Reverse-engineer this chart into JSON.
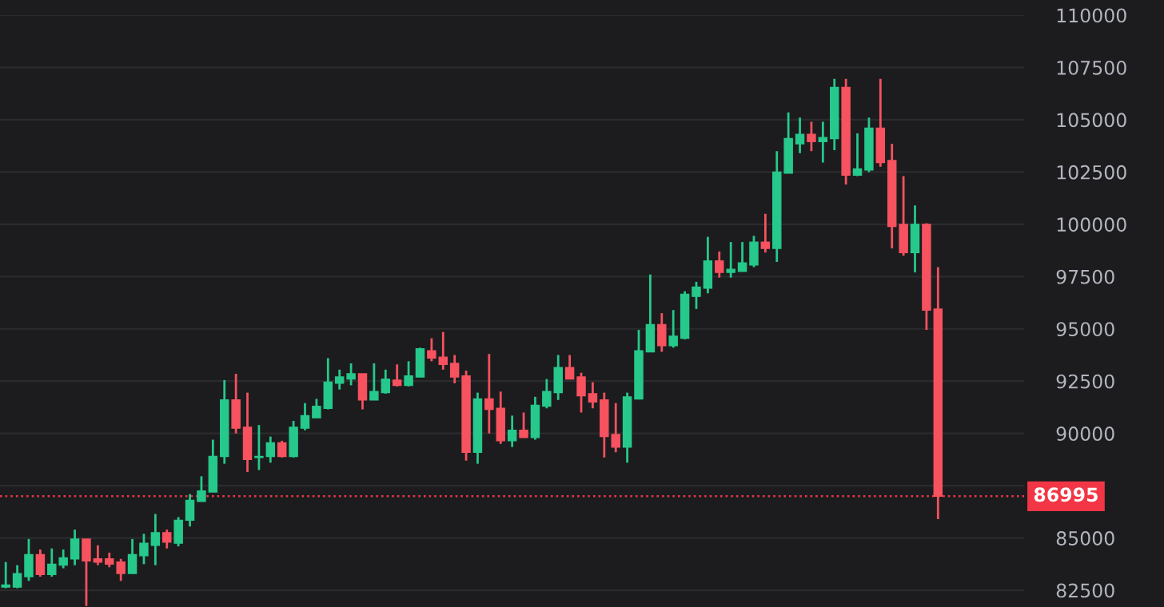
{
  "chart_data": {
    "type": "candlestick",
    "categories": [
      null,
      null,
      null,
      null,
      null,
      null,
      null,
      null,
      null,
      null,
      null,
      null,
      null,
      null,
      null,
      null,
      null,
      null,
      null,
      null,
      null,
      null,
      null,
      null,
      null,
      null,
      null,
      null,
      null,
      null,
      null,
      null,
      null,
      null,
      null,
      null,
      null,
      null,
      null,
      null,
      null,
      null,
      null,
      null,
      null,
      null,
      null,
      null,
      null,
      null,
      null,
      null,
      null,
      null,
      null,
      null,
      null,
      null,
      null,
      null,
      null,
      null,
      null,
      null,
      null,
      null,
      null,
      null,
      null,
      null,
      null,
      null,
      null,
      null,
      null,
      null,
      null,
      null,
      null,
      null,
      null,
      null,
      null,
      null,
      null,
      null,
      null,
      null,
      null
    ],
    "ohlc": [
      [
        82650,
        83850,
        82600,
        82750
      ],
      [
        82650,
        83700,
        82600,
        83300
      ],
      [
        83150,
        84950,
        82950,
        84200
      ],
      [
        84200,
        84450,
        83150,
        83250
      ],
      [
        83250,
        84500,
        83150,
        83750
      ],
      [
        83700,
        84450,
        83550,
        84050
      ],
      [
        84000,
        85400,
        83700,
        84950
      ],
      [
        84950,
        84950,
        81750,
        83900
      ],
      [
        84000,
        84650,
        83700,
        83850
      ],
      [
        84000,
        84300,
        83600,
        83750
      ],
      [
        83850,
        84000,
        82950,
        83300
      ],
      [
        83300,
        84950,
        83300,
        84200
      ],
      [
        84150,
        85200,
        83750,
        84750
      ],
      [
        84650,
        86150,
        83700,
        85250
      ],
      [
        85250,
        85400,
        84500,
        84800
      ],
      [
        84750,
        86000,
        84600,
        85850
      ],
      [
        85850,
        87100,
        85550,
        86800
      ],
      [
        86750,
        87950,
        86750,
        87250
      ],
      [
        87200,
        89700,
        87200,
        88900
      ],
      [
        88900,
        92550,
        88550,
        91600
      ],
      [
        91600,
        92850,
        90000,
        90250
      ],
      [
        90300,
        91950,
        88150,
        88750
      ],
      [
        88850,
        90400,
        88250,
        88900
      ],
      [
        88900,
        89850,
        88600,
        89550
      ],
      [
        89550,
        89650,
        88850,
        88900
      ],
      [
        88900,
        90600,
        88850,
        90300
      ],
      [
        90250,
        91450,
        90150,
        90850
      ],
      [
        90750,
        91650,
        90750,
        91300
      ],
      [
        91200,
        93600,
        91150,
        92450
      ],
      [
        92400,
        93050,
        92100,
        92700
      ],
      [
        92600,
        93350,
        92300,
        92850
      ],
      [
        92850,
        92850,
        91150,
        91600
      ],
      [
        91600,
        93350,
        91600,
        92000
      ],
      [
        91950,
        93050,
        91900,
        92600
      ],
      [
        92550,
        93300,
        92250,
        92300
      ],
      [
        92300,
        93450,
        92250,
        92750
      ],
      [
        92700,
        94100,
        92700,
        94050
      ],
      [
        93950,
        94550,
        93450,
        93600
      ],
      [
        93650,
        94850,
        93050,
        93300
      ],
      [
        93350,
        93750,
        92400,
        92700
      ],
      [
        92750,
        93000,
        88700,
        89100
      ],
      [
        89100,
        91950,
        88550,
        91650
      ],
      [
        91650,
        93800,
        90000,
        91150
      ],
      [
        91200,
        92000,
        89500,
        89650
      ],
      [
        89650,
        90850,
        89350,
        90150
      ],
      [
        90150,
        91000,
        89800,
        89800
      ],
      [
        89800,
        91750,
        89700,
        91350
      ],
      [
        91300,
        92600,
        91200,
        92000
      ],
      [
        91950,
        93750,
        91600,
        93150
      ],
      [
        93150,
        93750,
        92600,
        92600
      ],
      [
        92700,
        92900,
        91000,
        91800
      ],
      [
        91900,
        92450,
        91200,
        91500
      ],
      [
        91600,
        91950,
        88850,
        89850
      ],
      [
        89950,
        91450,
        89100,
        89350
      ],
      [
        89350,
        91950,
        88600,
        91750
      ],
      [
        91650,
        94950,
        91650,
        93950
      ],
      [
        93900,
        97600,
        93900,
        95200
      ],
      [
        95200,
        95750,
        93900,
        94200
      ],
      [
        94200,
        95900,
        94100,
        94650
      ],
      [
        94550,
        96800,
        94500,
        96650
      ],
      [
        96550,
        97250,
        95950,
        97000
      ],
      [
        96950,
        99400,
        96700,
        98250
      ],
      [
        98250,
        98700,
        97450,
        97700
      ],
      [
        97700,
        99150,
        97450,
        97850
      ],
      [
        97750,
        99150,
        97750,
        98150
      ],
      [
        98050,
        99450,
        97950,
        99150
      ],
      [
        99150,
        100500,
        98650,
        98850
      ],
      [
        98850,
        103500,
        98200,
        102500
      ],
      [
        102450,
        105350,
        102450,
        104100
      ],
      [
        103850,
        105100,
        103400,
        104300
      ],
      [
        104300,
        104900,
        103500,
        103950
      ],
      [
        103950,
        104900,
        102950,
        104150
      ],
      [
        104100,
        106950,
        103550,
        106550
      ],
      [
        106550,
        106950,
        101900,
        102350
      ],
      [
        102350,
        104350,
        102300,
        102650
      ],
      [
        102600,
        105100,
        102500,
        104600
      ],
      [
        104600,
        106950,
        102750,
        102950
      ],
      [
        103050,
        103850,
        98850,
        99900
      ],
      [
        100000,
        102300,
        98500,
        98650
      ],
      [
        98650,
        100900,
        97700,
        100000
      ],
      [
        100000,
        100050,
        94950,
        95900
      ],
      [
        95950,
        97950,
        85900,
        86995
      ],
      null,
      null,
      null,
      null,
      null,
      null,
      null
    ],
    "colors": [
      "#26c98b",
      "#26c98b",
      "#26c98b",
      "#f7525f",
      "#26c98b",
      "#26c98b",
      "#26c98b",
      "#f7525f",
      "#f7525f",
      "#f7525f",
      "#f7525f",
      "#26c98b",
      "#26c98b",
      "#26c98b",
      "#f7525f",
      "#26c98b",
      "#26c98b",
      "#26c98b",
      "#26c98b",
      "#26c98b",
      "#f7525f",
      "#f7525f",
      "#26c98b",
      "#26c98b",
      "#f7525f",
      "#26c98b",
      "#26c98b",
      "#26c98b",
      "#26c98b",
      "#26c98b",
      "#26c98b",
      "#f7525f",
      "#26c98b",
      "#26c98b",
      "#f7525f",
      "#26c98b",
      "#26c98b",
      "#f7525f",
      "#f7525f",
      "#f7525f",
      "#f7525f",
      "#26c98b",
      "#f7525f",
      "#f7525f",
      "#26c98b",
      "#f7525f",
      "#26c98b",
      "#26c98b",
      "#26c98b",
      "#f7525f",
      "#f7525f",
      "#f7525f",
      "#f7525f",
      "#f7525f",
      "#26c98b",
      "#26c98b",
      "#26c98b",
      "#f7525f",
      "#26c98b",
      "#26c98b",
      "#26c98b",
      "#26c98b",
      "#f7525f",
      "#26c98b",
      "#26c98b",
      "#26c98b",
      "#f7525f",
      "#26c98b",
      "#26c98b",
      "#26c98b",
      "#f7525f",
      "#26c98b",
      "#26c98b",
      "#f7525f",
      "#26c98b",
      "#26c98b",
      "#f7525f",
      "#f7525f",
      "#f7525f",
      "#26c98b",
      "#f7525f",
      "#f7525f",
      null,
      null,
      null,
      null,
      null,
      null,
      null
    ],
    "ylim": [
      81700,
      110000
    ],
    "yticks": [
      82500,
      85000,
      {
        "value": 87500,
        "label": null
      },
      90000,
      92500,
      95000,
      97500,
      100000,
      102500,
      105000,
      107500,
      110000
    ],
    "tick_labels": "y",
    "grid": "y",
    "ref_lines": [
      {
        "axis": "y",
        "value": 86995,
        "label": "86995",
        "color": "#f23645",
        "line_style": "dotted"
      }
    ]
  }
}
